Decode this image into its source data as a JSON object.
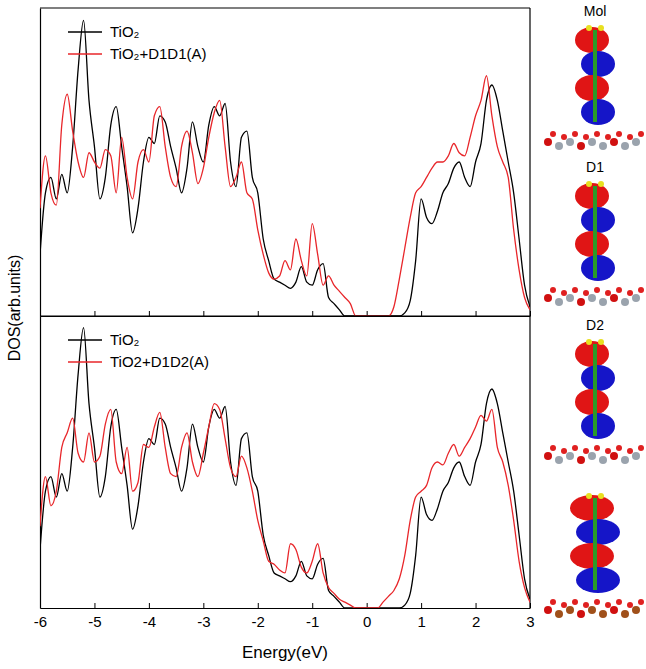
{
  "chart_data": [
    {
      "type": "line",
      "y_label": "DOS(arb.units)",
      "tick_labels": false,
      "legend": "upper left",
      "xlim": [
        -6,
        3
      ],
      "xticks": [
        -6,
        -5,
        -4,
        -3,
        -2,
        -1,
        0,
        1,
        2,
        3
      ],
      "ylim": [
        0,
        10
      ],
      "x": [
        -6,
        -5.9,
        -5.8,
        -5.7,
        -5.6,
        -5.5,
        -5.4,
        -5.3,
        -5.2,
        -5.1,
        -5,
        -4.9,
        -4.8,
        -4.7,
        -4.6,
        -4.5,
        -4.4,
        -4.3,
        -4.2,
        -4.1,
        -4,
        -3.9,
        -3.8,
        -3.7,
        -3.6,
        -3.5,
        -3.4,
        -3.3,
        -3.2,
        -3.1,
        -3,
        -2.9,
        -2.8,
        -2.7,
        -2.6,
        -2.5,
        -2.4,
        -2.3,
        -2.2,
        -2.1,
        -2,
        -1.9,
        -1.8,
        -1.7,
        -1.6,
        -1.5,
        -1.4,
        -1.3,
        -1.2,
        -1.1,
        -1,
        -0.9,
        -0.8,
        -0.7,
        -0.6,
        -0.5,
        -0.4,
        -0.3,
        -0.2,
        -0.1,
        0,
        0.1,
        0.2,
        0.3,
        0.4,
        0.5,
        0.6,
        0.7,
        0.8,
        0.9,
        1,
        1.1,
        1.2,
        1.3,
        1.4,
        1.5,
        1.6,
        1.7,
        1.8,
        1.9,
        2,
        2.1,
        2.2,
        2.3,
        2.4,
        2.5,
        2.6,
        2.7,
        2.8,
        2.9,
        3
      ],
      "series": [
        {
          "name": "TiO₂",
          "color": "#000000",
          "values": [
            2.0,
            4.0,
            4.5,
            3.8,
            4.6,
            4.0,
            5.5,
            8.0,
            9.6,
            7.0,
            5.5,
            3.8,
            4.5,
            6.2,
            6.8,
            5.5,
            4.2,
            2.7,
            3.5,
            5.0,
            5.8,
            5.6,
            6.5,
            6.3,
            5.5,
            4.8,
            4.0,
            4.8,
            6.3,
            5.5,
            5.0,
            6.2,
            6.8,
            6.5,
            6.9,
            5.0,
            4.2,
            5.8,
            6.0,
            4.5,
            4.0,
            2.5,
            1.8,
            1.2,
            1.1,
            1.0,
            0.9,
            1.1,
            1.6,
            1.1,
            1.0,
            1.5,
            1.7,
            0.6,
            0.4,
            0.2,
            0,
            0,
            0,
            0,
            0,
            0,
            0,
            0,
            0,
            0,
            0,
            0.1,
            0.5,
            1.8,
            3.8,
            3.2,
            3.0,
            3.4,
            4.0,
            4.3,
            4.8,
            5.0,
            4.5,
            4.2,
            5.0,
            5.6,
            7.0,
            7.5,
            7.0,
            6.0,
            5.0,
            4.0,
            2.5,
            1.0,
            0.3
          ]
        },
        {
          "name": "TiO₂+D1D1(A)",
          "color": "#e8262a",
          "values": [
            3.5,
            5.2,
            4.0,
            3.6,
            6.2,
            7.2,
            6.0,
            5.0,
            4.5,
            5.3,
            5.0,
            4.8,
            5.4,
            5.2,
            4.0,
            5.8,
            4.5,
            3.8,
            5.0,
            5.4,
            5.0,
            6.5,
            6.8,
            5.5,
            4.5,
            4.2,
            5.5,
            6.0,
            5.3,
            4.3,
            4.8,
            5.8,
            6.6,
            7.0,
            5.5,
            4.2,
            4.5,
            5.0,
            4.0,
            3.8,
            2.8,
            2.0,
            1.4,
            1.2,
            1.3,
            1.8,
            1.5,
            2.5,
            1.8,
            1.3,
            3.0,
            2.0,
            1.0,
            1.3,
            1.0,
            0.8,
            0.6,
            0.4,
            0,
            0,
            0,
            0,
            0,
            0,
            0,
            0.3,
            1.2,
            2.2,
            3.2,
            4.0,
            4.2,
            4.5,
            4.8,
            5.0,
            5.0,
            5.2,
            5.6,
            5.3,
            5.2,
            5.8,
            6.5,
            7.0,
            7.8,
            6.5,
            5.5,
            5.0,
            4.5,
            2.8,
            1.5,
            0.6,
            0.2
          ]
        }
      ]
    },
    {
      "type": "line",
      "x_label": "Energy(eV)",
      "tick_labels": "x",
      "legend": "upper left",
      "xlim": [
        -6,
        3
      ],
      "xticks": [
        -6,
        -5,
        -4,
        -3,
        -2,
        -1,
        0,
        1,
        2,
        3
      ],
      "ylim": [
        0,
        10
      ],
      "x": [
        -6,
        -5.9,
        -5.8,
        -5.7,
        -5.6,
        -5.5,
        -5.4,
        -5.3,
        -5.2,
        -5.1,
        -5,
        -4.9,
        -4.8,
        -4.7,
        -4.6,
        -4.5,
        -4.4,
        -4.3,
        -4.2,
        -4.1,
        -4,
        -3.9,
        -3.8,
        -3.7,
        -3.6,
        -3.5,
        -3.4,
        -3.3,
        -3.2,
        -3.1,
        -3,
        -2.9,
        -2.8,
        -2.7,
        -2.6,
        -2.5,
        -2.4,
        -2.3,
        -2.2,
        -2.1,
        -2,
        -1.9,
        -1.8,
        -1.7,
        -1.6,
        -1.5,
        -1.4,
        -1.3,
        -1.2,
        -1.1,
        -1,
        -0.9,
        -0.8,
        -0.7,
        -0.6,
        -0.5,
        -0.4,
        -0.3,
        -0.2,
        -0.1,
        0,
        0.1,
        0.2,
        0.3,
        0.4,
        0.5,
        0.6,
        0.7,
        0.8,
        0.9,
        1,
        1.1,
        1.2,
        1.3,
        1.4,
        1.5,
        1.6,
        1.7,
        1.8,
        1.9,
        2,
        2.1,
        2.2,
        2.3,
        2.4,
        2.5,
        2.6,
        2.7,
        2.8,
        2.9,
        3
      ],
      "series": [
        {
          "name": "TiO₂",
          "color": "#000000",
          "values": [
            2.0,
            4.0,
            4.5,
            3.8,
            4.6,
            4.0,
            5.5,
            8.0,
            9.6,
            7.0,
            5.5,
            3.8,
            4.5,
            6.2,
            6.8,
            5.5,
            4.2,
            2.7,
            3.5,
            5.0,
            5.8,
            5.6,
            6.5,
            6.3,
            5.5,
            4.8,
            4.0,
            4.8,
            6.3,
            5.5,
            5.0,
            6.2,
            6.8,
            6.5,
            6.9,
            5.0,
            4.2,
            5.8,
            6.0,
            4.5,
            4.0,
            2.5,
            1.8,
            1.2,
            1.1,
            1.0,
            0.9,
            1.1,
            1.6,
            1.1,
            1.0,
            1.5,
            1.7,
            0.6,
            0.4,
            0.2,
            0,
            0,
            0,
            0,
            0,
            0,
            0,
            0,
            0,
            0,
            0,
            0.1,
            0.5,
            1.8,
            3.8,
            3.2,
            3.0,
            3.4,
            4.0,
            4.3,
            4.8,
            5.0,
            4.5,
            4.2,
            5.0,
            5.6,
            7.0,
            7.5,
            7.0,
            6.0,
            5.0,
            4.0,
            2.5,
            1.0,
            0.3
          ]
        },
        {
          "name": "TiO2+D1D2(A)",
          "color": "#e8262a",
          "values": [
            2.8,
            4.5,
            3.5,
            4.0,
            5.5,
            6.0,
            6.5,
            5.3,
            5.0,
            6.0,
            5.0,
            5.2,
            6.3,
            6.8,
            5.0,
            4.6,
            5.5,
            4.0,
            4.3,
            5.6,
            5.5,
            6.2,
            6.7,
            5.5,
            4.6,
            4.5,
            5.5,
            6.0,
            5.0,
            4.5,
            5.3,
            6.2,
            7.0,
            6.8,
            5.8,
            4.8,
            4.5,
            5.2,
            4.8,
            4.0,
            3.0,
            2.3,
            1.6,
            1.5,
            1.3,
            1.2,
            2.2,
            2.0,
            1.4,
            1.2,
            1.6,
            2.2,
            1.2,
            0.7,
            0.5,
            0.3,
            0.2,
            0.1,
            0,
            0,
            0,
            0,
            0,
            0.2,
            0.4,
            0.6,
            1.0,
            1.8,
            3.0,
            3.8,
            4.0,
            4.2,
            4.8,
            5.0,
            4.9,
            5.3,
            5.6,
            5.2,
            5.5,
            5.8,
            6.2,
            6.6,
            6.4,
            6.8,
            5.5,
            5.0,
            4.2,
            3.0,
            1.6,
            0.7,
            0.2
          ]
        }
      ]
    }
  ],
  "side_images": {
    "labels": [
      "Mol",
      "D1",
      "D2"
    ]
  }
}
